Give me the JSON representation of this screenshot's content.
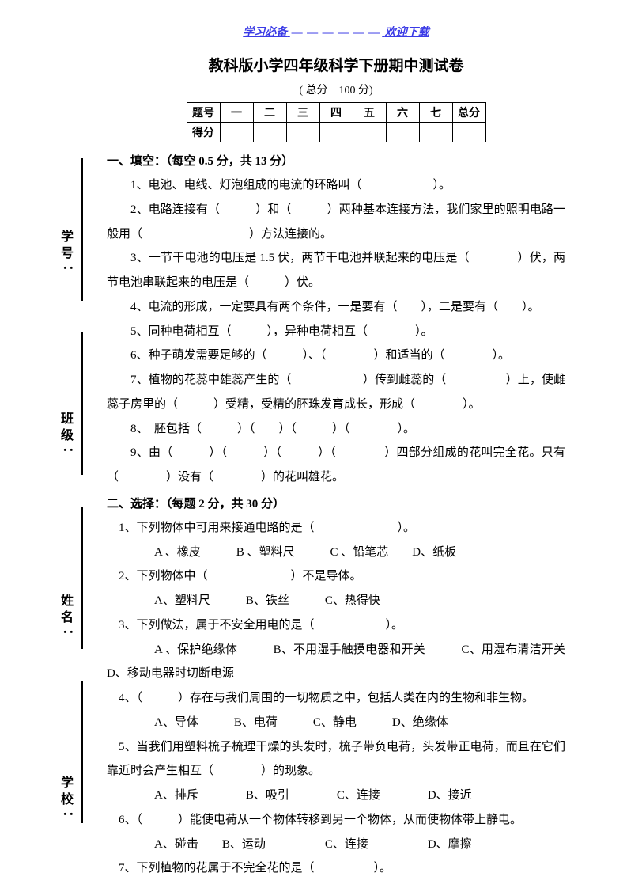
{
  "header": {
    "left": "学习必备",
    "right": "欢迎下载"
  },
  "title": "教科版小学四年级科学下册期中测试卷",
  "subtitle": "( 总分　100 分)",
  "scoreTable": {
    "row1": [
      "题号",
      "一",
      "二",
      "三",
      "四",
      "五",
      "六",
      "七",
      "总分"
    ],
    "row2Label": "得分"
  },
  "section1": {
    "head": "一、填空：（每空 0.5 分，共 13 分）",
    "q1": "1、电池、电线、灯泡组成的电流的环路叫（　　　　　　）。",
    "q2": "2、电路连接有（　　　）和（　　　）两种基本连接方法，我们家里的照明电路一般用（　　　　　　　　　）方法连接的。",
    "q3": "3、一节干电池的电压是 1.5 伏，两节干电池并联起来的电压是（　　　　）伏，两节电池串联起来的电压是（　　　）伏。",
    "q4": "4、电流的形成，一定要具有两个条件，一是要有（　　），二是要有（　　）。",
    "q5": "5、同种电荷相互（　　　），异种电荷相互（　　　　）。",
    "q6": "6、种子萌发需要足够的（　　　）、（　　　　）和适当的（　　　　）。",
    "q7": "7、植物的花蕊中雄蕊产生的（　　　　　　）传到雌蕊的（　　　　　）上，使雌蕊子房里的（　　　）受精，受精的胚珠发育成长，形成（　　　　）。",
    "q8": "8、　胚包括（　　　）（　　）（　　　）（　　　　）。",
    "q9": "9、由（　　　）（　　　）（　　　）（　　　　）四部分组成的花叫完全花。只有（　　　　）没有（　　　　）的花叫雄花。"
  },
  "section2": {
    "head": "二、选择：（每题 2 分，共 30 分）",
    "q1": "1、下列物体中可用来接通电路的是（　　　　　　　）。",
    "q1o": "A 、橡皮　　　B 、塑料尺　　　C 、铅笔芯　　D、纸板",
    "q2": "2、下列物体中（　　　　　　　）不是导体。",
    "q2o": "A、塑料尺　　　B、铁丝　　　C、热得快",
    "q3": "3、下列做法，属于不安全用电的是（　　　　　　）。",
    "q3o": "A 、保护绝缘体　　　B、不用湿手触摸电器和开关　　　C、用湿布清洁开关　　　　D、移动电器时切断电源",
    "q4": "4、（　　　）存在与我们周围的一切物质之中，包括人类在内的生物和非生物。",
    "q4o": "A、导体　　　B、电荷　　　C、静电　　　D、绝缘体",
    "q5": "5、当我们用塑料梳子梳理干燥的头发时，梳子带负电荷，头发带正电荷，而且在它们靠近时会产生相互（　　　　）的现象。",
    "q5o": "A、排斥　　　　B、吸引　　　　C、连接　　　　D、接近",
    "q6": "6、（　　　）能使电荷从一个物体转移到另一个物体，从而使物体带上静电。",
    "q6o": "A、碰击　　B、运动　　　　　C、连接　　　　　D、摩擦",
    "q7": "7、下列植物的花属于不完全花的是（　　　　　）。"
  },
  "side": {
    "l1": "学号",
    "l2": "班级",
    "l3": "姓名",
    "l4": "学校"
  }
}
